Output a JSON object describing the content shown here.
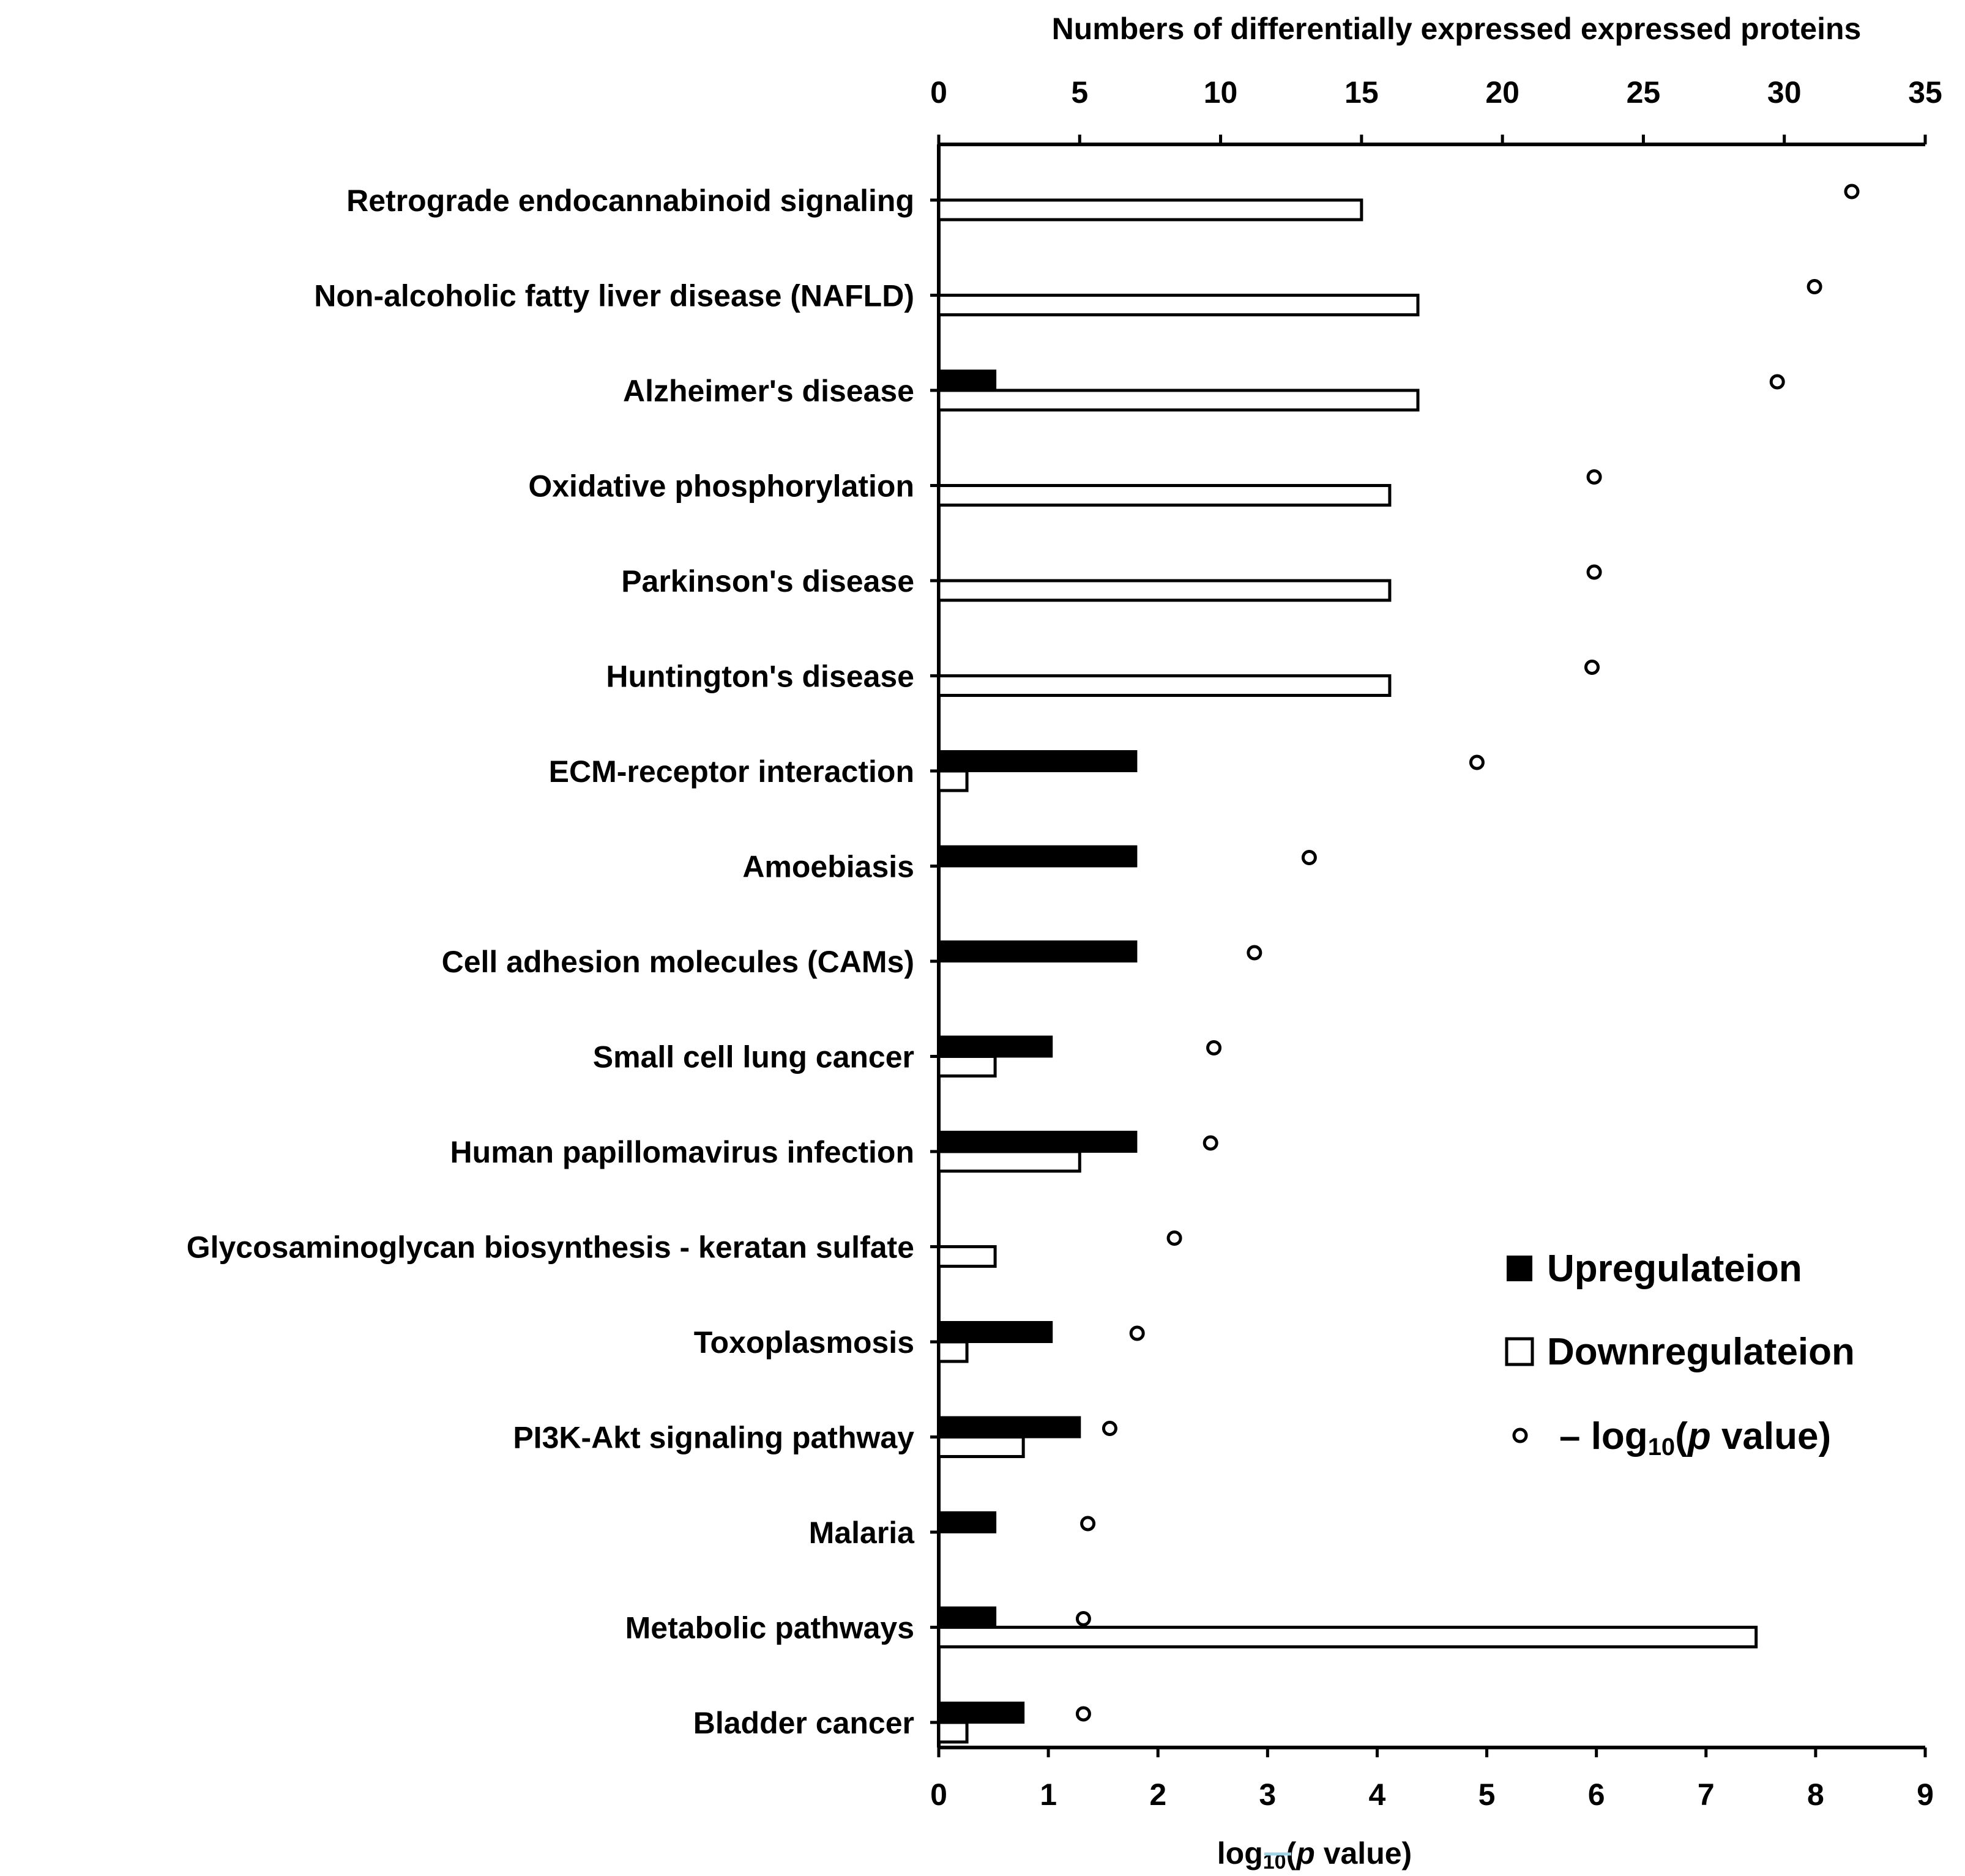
{
  "chart_data": {
    "type": "bar",
    "orientation": "horizontal",
    "top_axis": {
      "title": "Numbers of differentially expressed expressed proteins",
      "range": [
        0,
        35
      ],
      "ticks": [
        0,
        5,
        10,
        15,
        20,
        25,
        30,
        35
      ]
    },
    "bottom_axis": {
      "title_prefix": "log",
      "title_sub": "10",
      "title_suffix": "(",
      "title_p": "p",
      "title_end": " value)",
      "range": [
        0,
        9
      ],
      "ticks": [
        0,
        1,
        2,
        3,
        4,
        5,
        6,
        7,
        8,
        9
      ]
    },
    "categories": [
      "Retrograde endocannabinoid signaling",
      "Non-alcoholic fatty liver disease (NAFLD)",
      "Alzheimer's disease",
      "Oxidative phosphorylation",
      "Parkinson's disease",
      "Huntington's disease",
      "ECM-receptor interaction",
      "Amoebiasis",
      "Cell adhesion molecules (CAMs)",
      "Small cell lung cancer",
      "Human papillomavirus infection",
      "Glycosaminoglycan biosynthesis - keratan sulfate",
      "Toxoplasmosis",
      "PI3K-Akt signaling pathway",
      "Malaria",
      "Metabolic pathways",
      "Bladder cancer"
    ],
    "series": [
      {
        "name": "Upregulateion",
        "color": "#000000",
        "axis": "top",
        "values": [
          0,
          0,
          2,
          0,
          0,
          0,
          7,
          7,
          7,
          4,
          7,
          0,
          4,
          5,
          2,
          2,
          3
        ]
      },
      {
        "name": "Downregulateion",
        "color": "#ffffff",
        "axis": "top",
        "values": [
          15,
          17,
          17,
          16,
          16,
          16,
          1,
          0,
          0,
          2,
          5,
          2,
          1,
          3,
          0,
          29,
          1
        ]
      },
      {
        "name": "log10(p value)",
        "marker": "open-circle",
        "axis": "bottom",
        "values": [
          8.33,
          7.99,
          7.65,
          5.98,
          5.98,
          5.96,
          4.91,
          3.38,
          2.88,
          2.51,
          2.48,
          2.15,
          1.81,
          1.56,
          1.36,
          1.32,
          1.32
        ]
      }
    ],
    "legend": {
      "position": "bottom-right",
      "up_label": "Upregulateion",
      "down_label": "Downregulateion",
      "log_prefix": "– log",
      "log_sub": "10",
      "log_suffix": "(",
      "log_p": "p",
      "log_end": " value)"
    }
  }
}
